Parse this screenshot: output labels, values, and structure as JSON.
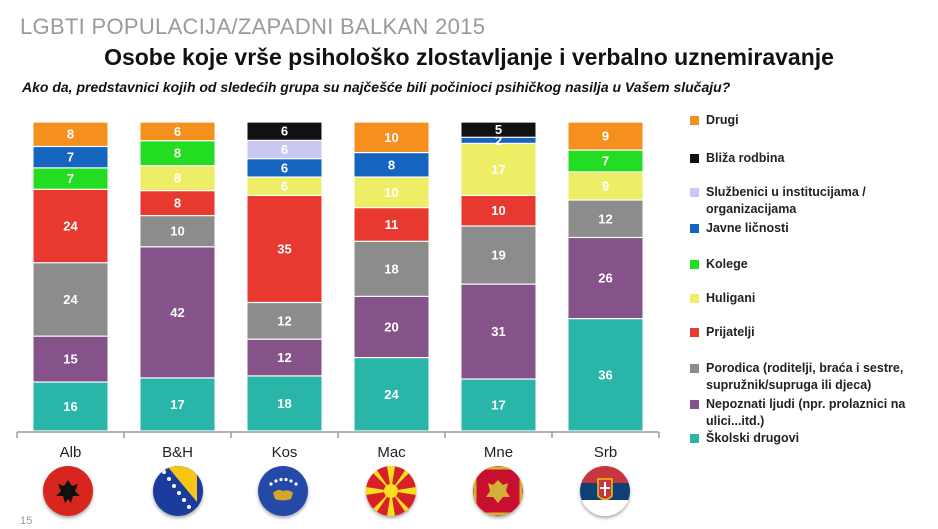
{
  "header": "LGBTI POPULACIJA/ZAPADNI BALKAN 2015",
  "page_number": "15",
  "chart_data": {
    "type": "bar",
    "stacked": true,
    "title": "Osobe koje vrše psihološko zlostavljanje i verbalno uznemiravanje",
    "subtitle": "Ako da, predstavnici kojih od sledećih grupa su najčešće bili počinioci psihičkog nasilja u Vašem slučaju?",
    "categories": [
      "Alb",
      "B&H",
      "Kos",
      "Mac",
      "Mne",
      "Srb"
    ],
    "series": [
      {
        "name": "Školski drugovi",
        "color": "#2ab5a9",
        "values": [
          16,
          17,
          18,
          24,
          17,
          36
        ]
      },
      {
        "name": "Nepoznati ljudi (npr. prolaznici na ulici...itd.)",
        "color": "#86528a",
        "values": [
          15,
          42,
          12,
          20,
          31,
          26
        ]
      },
      {
        "name": "Porodica (roditelji, braća i sestre, supružnik/supruga ili djeca)",
        "color": "#8c8c8c",
        "values": [
          24,
          10,
          12,
          18,
          19,
          12
        ]
      },
      {
        "name": "Prijatelji",
        "color": "#e7392f",
        "values": [
          24,
          8,
          35,
          11,
          10,
          0
        ]
      },
      {
        "name": "Huligani",
        "color": "#eeee66",
        "values": [
          0,
          8,
          6,
          10,
          17,
          9
        ]
      },
      {
        "name": "Kolege",
        "color": "#22dd22",
        "values": [
          7,
          8,
          0,
          0,
          0,
          7
        ]
      },
      {
        "name": "Javne ličnosti",
        "color": "#1565c0",
        "values": [
          7,
          0,
          6,
          8,
          2,
          0
        ]
      },
      {
        "name": "Službenici u institucijama / organizacijama",
        "color": "#c8c8f0",
        "values": [
          0,
          0,
          6,
          0,
          0,
          0
        ]
      },
      {
        "name": "Bliža rodbina",
        "color": "#111111",
        "values": [
          0,
          0,
          6,
          0,
          5,
          0
        ]
      },
      {
        "name": "Drugi",
        "color": "#f5901f",
        "values": [
          8,
          6,
          0,
          10,
          0,
          9
        ]
      }
    ],
    "legend_position": "right",
    "grid": false
  },
  "legend": [
    {
      "label": "Drugi",
      "color": "#f5901f"
    },
    {
      "label": "Bliža rodbina",
      "color": "#111111"
    },
    {
      "label": "Službenici u institucijama / organizacijama",
      "color": "#c8c8f0"
    },
    {
      "label": "Javne ličnosti",
      "color": "#1565c0"
    },
    {
      "label": "Kolege",
      "color": "#22dd22"
    },
    {
      "label": "Huligani",
      "color": "#eeee66"
    },
    {
      "label": "Prijatelji",
      "color": "#e7392f"
    },
    {
      "label": "Porodica (roditelji, braća i sestre, supružnik/supruga ili djeca)",
      "color": "#8c8c8c"
    },
    {
      "label": "Nepoznati ljudi (npr. prolaznici na ulici...itd.)",
      "color": "#86528a"
    },
    {
      "label": "Školski drugovi",
      "color": "#2ab5a9"
    }
  ],
  "flags": [
    {
      "country": "Alb",
      "icon": "albania-flag-icon"
    },
    {
      "country": "B&H",
      "icon": "bosnia-flag-icon"
    },
    {
      "country": "Kos",
      "icon": "kosovo-flag-icon"
    },
    {
      "country": "Mac",
      "icon": "macedonia-flag-icon"
    },
    {
      "country": "Mne",
      "icon": "montenegro-flag-icon"
    },
    {
      "country": "Srb",
      "icon": "serbia-flag-icon"
    }
  ]
}
